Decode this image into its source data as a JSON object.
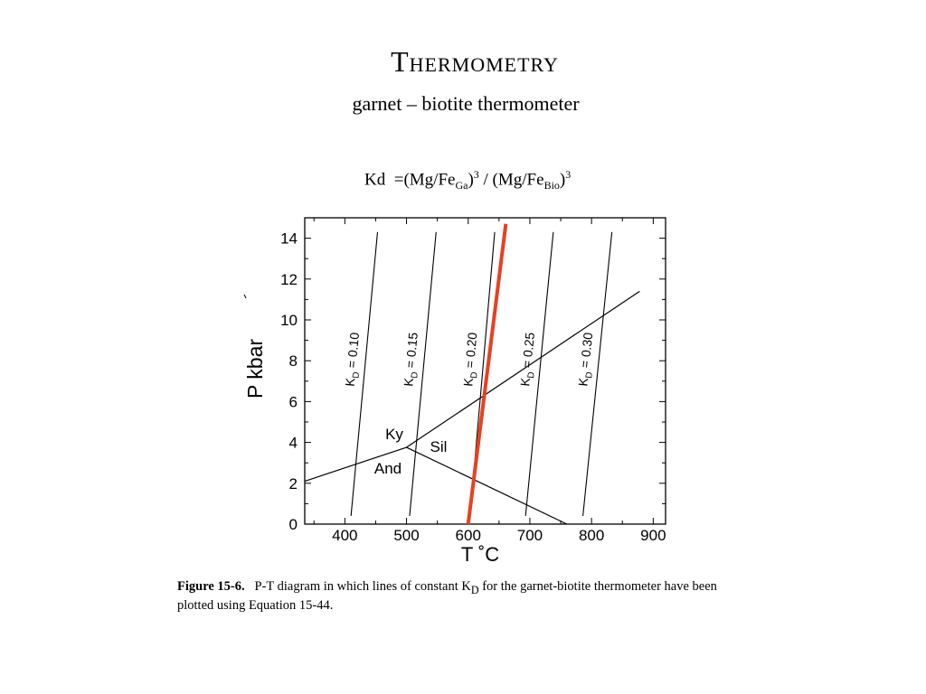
{
  "slide": {
    "title": "Thermometry",
    "subtitle": "garnet – biotite thermometer",
    "equation": {
      "kd": "Kd",
      "eq_open": "=(Mg/Fe",
      "ga": "Ga",
      "mid": ") / (Mg/Fe",
      "bio": "Bio",
      "close": ")",
      "exp": "3"
    }
  },
  "caption": {
    "figure_label": "Figure  15-6.",
    "text": "P-T diagram in which lines of constant K",
    "sub": "D",
    "text2": " for the garnet-biotite thermometer have been plotted using Equation 15-44."
  },
  "chart_data": {
    "type": "line",
    "xlabel": "T  ˚C",
    "ylabel": "P  kbar",
    "xlim": [
      335,
      920
    ],
    "ylim": [
      0,
      15
    ],
    "xticks": [
      400,
      500,
      600,
      700,
      800,
      900
    ],
    "yticks": [
      0,
      2,
      4,
      6,
      8,
      10,
      12,
      14
    ],
    "series": [
      {
        "name": "KD = 0.10",
        "kd": "K",
        "sub": "D",
        "val": " = 0.10",
        "color": "#000000",
        "points": [
          [
            410,
            0.4
          ],
          [
            453,
            14.3
          ]
        ]
      },
      {
        "name": "KD = 0.15",
        "kd": "K",
        "sub": "D",
        "val": " = 0.15",
        "color": "#000000",
        "points": [
          [
            505,
            0.4
          ],
          [
            548,
            14.3
          ]
        ]
      },
      {
        "name": "KD = 0.20",
        "kd": "K",
        "sub": "D",
        "val": " = 0.20",
        "color": "#000000",
        "points": [
          [
            603,
            0.4
          ],
          [
            643,
            14.3
          ]
        ]
      },
      {
        "name": "KD = 0.25",
        "kd": "K",
        "sub": "D",
        "val": " = 0.25",
        "color": "#000000",
        "points": [
          [
            693,
            0.4
          ],
          [
            738,
            14.3
          ]
        ]
      },
      {
        "name": "KD = 0.30",
        "kd": "K",
        "sub": "D",
        "val": " = 0.30",
        "color": "#000000",
        "points": [
          [
            786,
            0.4
          ],
          [
            833,
            14.3
          ]
        ]
      }
    ],
    "highlight": {
      "color": "#e8401f",
      "points": [
        [
          600,
          0
        ],
        [
          661,
          14.7
        ]
      ]
    },
    "aluminosilicate": {
      "triple_point": [
        500,
        3.76
      ],
      "ky_and": [
        [
          335,
          2.1
        ],
        [
          500,
          3.76
        ]
      ],
      "ky_sil": [
        [
          500,
          3.76
        ],
        [
          878,
          11.4
        ]
      ],
      "and_sil": [
        [
          500,
          3.76
        ],
        [
          760,
          0
        ]
      ],
      "labels": [
        "Ky",
        "Sil",
        "And"
      ]
    }
  }
}
